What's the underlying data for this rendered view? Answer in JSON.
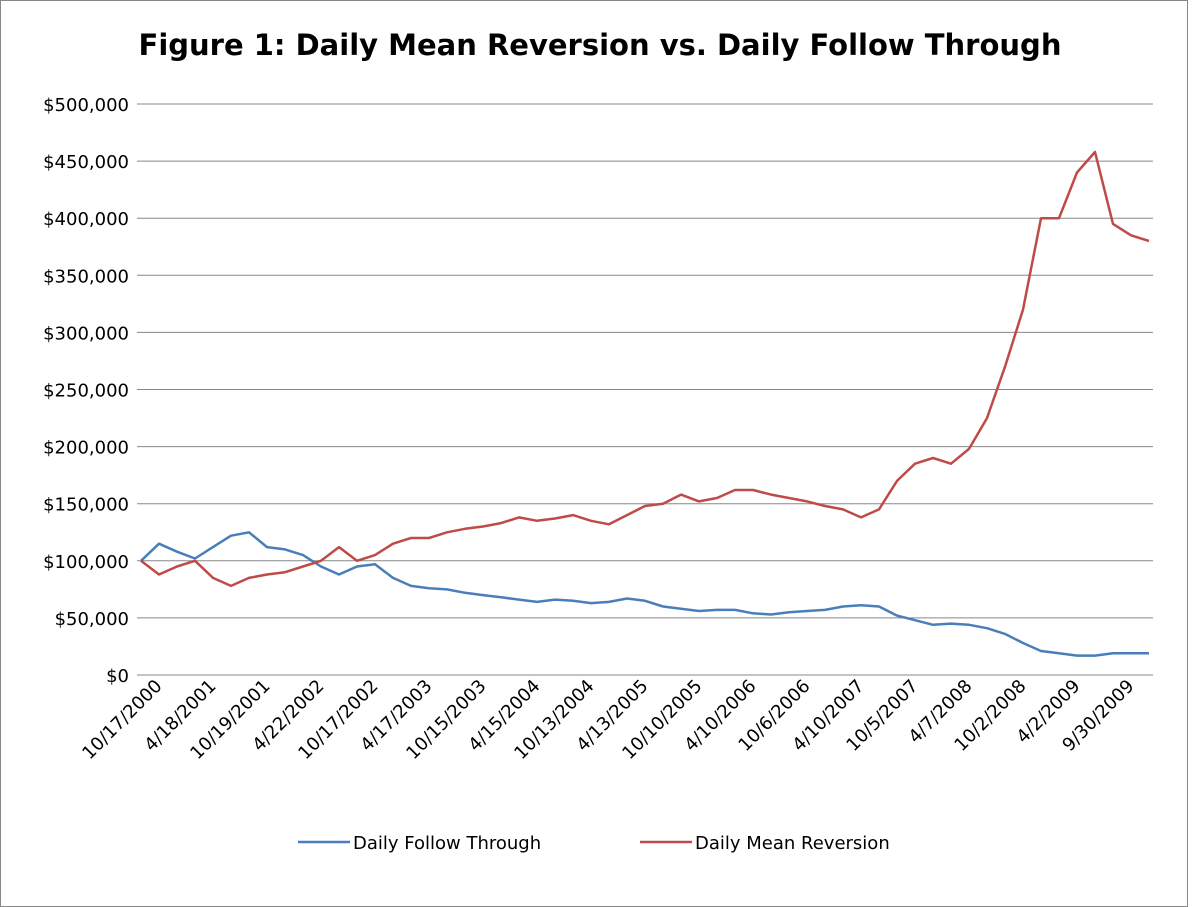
{
  "chart_data": {
    "type": "line",
    "title": "Figure 1: Daily Mean Reversion vs. Daily Follow Through",
    "categories": [
      "10/17/2000",
      null,
      null,
      "4/18/2001",
      null,
      null,
      "10/19/2001",
      null,
      null,
      "4/22/2002",
      null,
      null,
      "10/17/2002",
      null,
      null,
      "4/17/2003",
      null,
      null,
      "10/15/2003",
      null,
      null,
      "4/15/2004",
      null,
      null,
      "10/13/2004",
      null,
      null,
      "4/13/2005",
      null,
      null,
      "10/10/2005",
      null,
      null,
      "4/10/2006",
      null,
      null,
      "10/6/2006",
      null,
      null,
      "4/10/2007",
      null,
      null,
      "10/5/2007",
      null,
      null,
      "4/7/2008",
      null,
      null,
      "10/2/2008",
      null,
      null,
      "4/2/2009",
      null,
      null,
      "9/30/2009",
      null,
      null
    ],
    "series": [
      {
        "name": "Daily Follow Through",
        "color": "#4a7ebb",
        "values": [
          100000,
          115000,
          108000,
          102000,
          112000,
          122000,
          125000,
          112000,
          110000,
          105000,
          95000,
          88000,
          95000,
          97000,
          85000,
          78000,
          76000,
          75000,
          72000,
          70000,
          68000,
          66000,
          64000,
          66000,
          65000,
          63000,
          64000,
          67000,
          65000,
          60000,
          58000,
          56000,
          57000,
          57000,
          54000,
          53000,
          55000,
          56000,
          57000,
          60000,
          61000,
          60000,
          52000,
          48000,
          44000,
          45000,
          44000,
          41000,
          36000,
          28000,
          21000,
          19000,
          17000,
          17000,
          19000,
          19000,
          19000
        ]
      },
      {
        "name": "Daily Mean Reversion",
        "color": "#be4b48",
        "values": [
          100000,
          88000,
          95000,
          100000,
          85000,
          78000,
          85000,
          88000,
          90000,
          95000,
          100000,
          112000,
          100000,
          105000,
          115000,
          120000,
          120000,
          125000,
          128000,
          130000,
          133000,
          138000,
          135000,
          137000,
          140000,
          135000,
          132000,
          140000,
          148000,
          150000,
          158000,
          152000,
          155000,
          162000,
          162000,
          158000,
          155000,
          152000,
          148000,
          145000,
          138000,
          145000,
          170000,
          185000,
          190000,
          185000,
          198000,
          225000,
          270000,
          320000,
          400000,
          400000,
          440000,
          458000,
          395000,
          385000,
          380000
        ]
      }
    ],
    "ylim": [
      0,
      500000
    ],
    "yticks": [
      {
        "value": 0,
        "label": "$0"
      },
      {
        "value": 50000,
        "label": "$50,000"
      },
      {
        "value": 100000,
        "label": "$100,000"
      },
      {
        "value": 150000,
        "label": "$150,000"
      },
      {
        "value": 200000,
        "label": "$200,000"
      },
      {
        "value": 250000,
        "label": "$250,000"
      },
      {
        "value": 300000,
        "label": "$300,000"
      },
      {
        "value": 350000,
        "label": "$350,000"
      },
      {
        "value": 400000,
        "label": "$400,000"
      },
      {
        "value": 450000,
        "label": "$450,000"
      },
      {
        "value": 500000,
        "label": "$500,000"
      }
    ],
    "grid": true,
    "legend": "bottom"
  }
}
